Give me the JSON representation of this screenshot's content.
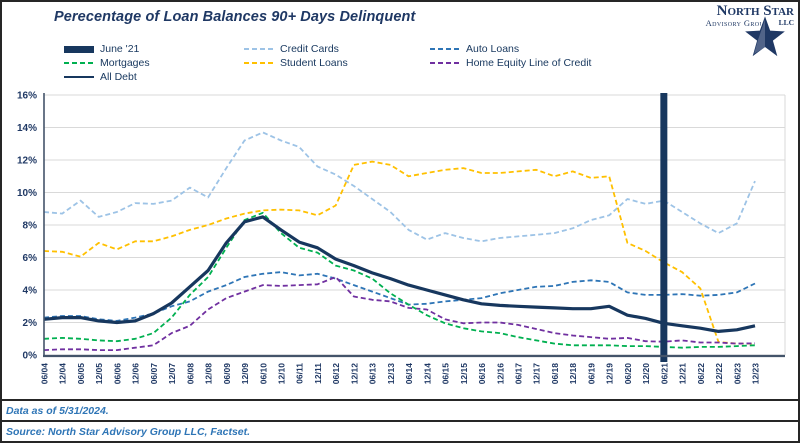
{
  "title": "Perecentage of Loan Balances 90+ Days Delinquent",
  "logo": {
    "name": "North Star",
    "subtitle": "Advisory Group",
    "llc": "LLC"
  },
  "legend": {
    "items": [
      {
        "label": "June '21",
        "type": "bar",
        "color": "#17375e"
      },
      {
        "label": "Credit Cards",
        "type": "dashed",
        "color": "#9dc3e6"
      },
      {
        "label": "Auto Loans",
        "type": "dashed",
        "color": "#2e75b6"
      },
      {
        "label": "Mortgages",
        "type": "dashed",
        "color": "#00b050"
      },
      {
        "label": "Student Loans",
        "type": "dashed",
        "color": "#ffc000"
      },
      {
        "label": "Home Equity Line of Credit",
        "type": "dashed",
        "color": "#7030a0"
      },
      {
        "label": "All Debt",
        "type": "solid",
        "color": "#17375e"
      }
    ]
  },
  "footer": {
    "line1": "Data as of 5/31/2024.",
    "line2": "Source: North Star Advisory Group LLC, Factset."
  },
  "colors": {
    "axis": "#44546a",
    "grid": "#d9d9d9",
    "tick_text": "#1f3864",
    "title_text": "#1f3864",
    "footer_text": "#2e75b6"
  },
  "chart_data": {
    "type": "line",
    "title": "Perecentage of Loan Balances 90+ Days Delinquent",
    "xlabel": "",
    "ylabel": "",
    "ylim": [
      0,
      16
    ],
    "grid": true,
    "legend_position": "top",
    "y_tick_labels": [
      "0%",
      "2%",
      "4%",
      "6%",
      "8%",
      "10%",
      "12%",
      "14%",
      "16%"
    ],
    "x_labels": [
      "06/04",
      "12/04",
      "06/05",
      "12/05",
      "06/06",
      "12/06",
      "06/07",
      "12/07",
      "06/08",
      "12/08",
      "06/09",
      "12/09",
      "06/10",
      "12/10",
      "06/11",
      "12/11",
      "06/12",
      "12/12",
      "06/13",
      "12/13",
      "06/14",
      "12/14",
      "06/15",
      "12/15",
      "06/16",
      "12/16",
      "06/17",
      "12/17",
      "06/18",
      "12/18",
      "06/19",
      "12/19",
      "06/20",
      "12/20",
      "06/21",
      "12/21",
      "06/22",
      "12/22",
      "06/23",
      "12/23"
    ],
    "marker": {
      "label": "June '21",
      "x_label": "06/21",
      "x_index": 34,
      "color": "#17375e"
    },
    "series": [
      {
        "name": "Credit Cards",
        "color": "#9dc3e6",
        "style": "dashed",
        "values": [
          8.8,
          8.7,
          9.5,
          8.5,
          8.8,
          9.35,
          9.3,
          9.5,
          10.3,
          9.7,
          11.5,
          13.2,
          13.7,
          13.2,
          12.8,
          11.6,
          11.1,
          10.4,
          9.6,
          8.8,
          7.7,
          7.1,
          7.5,
          7.2,
          7.0,
          7.2,
          7.3,
          7.4,
          7.5,
          7.8,
          8.3,
          8.6,
          9.6,
          9.3,
          9.5,
          8.8,
          8.1,
          7.5,
          8.1,
          10.7
        ]
      },
      {
        "name": "Student Loans",
        "color": "#ffc000",
        "style": "dashed",
        "values": [
          6.4,
          6.35,
          6.05,
          6.9,
          6.5,
          7.0,
          7.0,
          7.3,
          7.7,
          8.0,
          8.4,
          8.7,
          8.9,
          8.95,
          8.9,
          8.6,
          9.2,
          11.7,
          11.9,
          11.7,
          11.0,
          11.2,
          11.4,
          11.5,
          11.2,
          11.2,
          11.3,
          11.4,
          11.0,
          11.3,
          10.9,
          11.0,
          6.9,
          6.4,
          5.7,
          5.1,
          4.1,
          0.8,
          0.7,
          0.7
        ]
      },
      {
        "name": "Auto Loans",
        "color": "#2e75b6",
        "style": "dashed",
        "values": [
          2.3,
          2.4,
          2.4,
          2.2,
          2.1,
          2.3,
          2.55,
          3.0,
          3.3,
          3.9,
          4.3,
          4.8,
          5.0,
          5.1,
          4.9,
          5.0,
          4.7,
          4.3,
          3.9,
          3.5,
          3.1,
          3.15,
          3.3,
          3.4,
          3.5,
          3.8,
          4.0,
          4.2,
          4.25,
          4.5,
          4.6,
          4.5,
          3.85,
          3.7,
          3.7,
          3.75,
          3.65,
          3.7,
          3.85,
          4.4
        ]
      },
      {
        "name": "Home Equity Line of Credit",
        "color": "#7030a0",
        "style": "dashed",
        "values": [
          0.3,
          0.35,
          0.35,
          0.3,
          0.3,
          0.45,
          0.6,
          1.35,
          1.8,
          2.8,
          3.5,
          3.9,
          4.3,
          4.25,
          4.3,
          4.35,
          4.8,
          3.6,
          3.4,
          3.3,
          2.9,
          2.8,
          2.2,
          1.95,
          2.0,
          2.0,
          1.85,
          1.6,
          1.35,
          1.2,
          1.1,
          1.0,
          1.05,
          0.85,
          0.82,
          0.9,
          0.77,
          0.77,
          0.7,
          0.72
        ]
      },
      {
        "name": "Mortgages",
        "color": "#00b050",
        "style": "dashed",
        "values": [
          1.0,
          1.05,
          1.0,
          0.9,
          0.85,
          1.0,
          1.35,
          2.3,
          3.7,
          4.8,
          6.6,
          8.3,
          8.75,
          7.5,
          6.6,
          6.3,
          5.5,
          5.2,
          4.7,
          3.8,
          3.1,
          2.45,
          1.95,
          1.65,
          1.45,
          1.35,
          1.1,
          0.9,
          0.7,
          0.6,
          0.6,
          0.6,
          0.55,
          0.55,
          0.5,
          0.45,
          0.5,
          0.5,
          0.55,
          0.6
        ]
      },
      {
        "name": "All Debt",
        "color": "#17375e",
        "style": "solid",
        "width": 3.2,
        "values": [
          2.2,
          2.3,
          2.3,
          2.1,
          2.0,
          2.1,
          2.55,
          3.2,
          4.2,
          5.2,
          6.9,
          8.2,
          8.5,
          7.7,
          6.95,
          6.6,
          5.9,
          5.5,
          5.05,
          4.7,
          4.3,
          4.0,
          3.7,
          3.4,
          3.15,
          3.05,
          3.0,
          2.95,
          2.9,
          2.85,
          2.85,
          3.0,
          2.45,
          2.25,
          1.95,
          1.8,
          1.65,
          1.45,
          1.55,
          1.8
        ]
      }
    ]
  }
}
